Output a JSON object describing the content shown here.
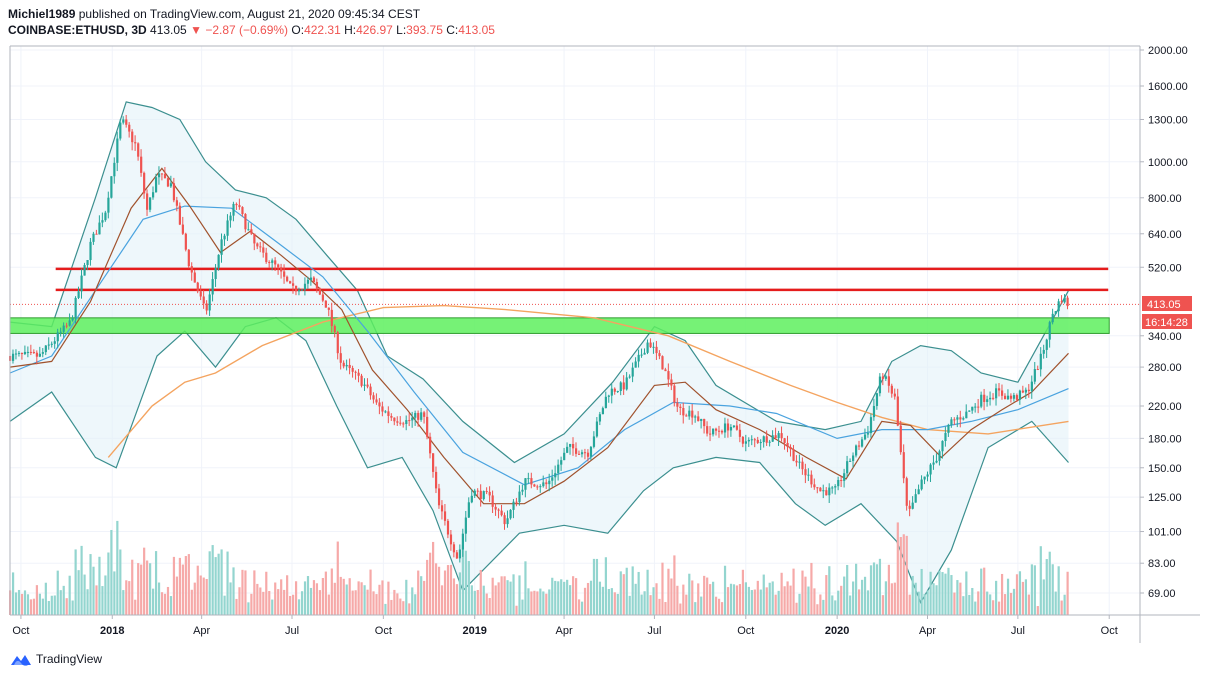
{
  "header": {
    "author": "Michiel1989",
    "published_text": "published on TradingView.com, August 21, 2020 09:45:34 CEST",
    "symbol": "COINBASE:ETHUSD, 3D",
    "last_price": "413.05",
    "change": "−2.87 (−0.69%)",
    "open_label": "O:",
    "open": "422.31",
    "high_label": "H:",
    "high": "426.97",
    "low_label": "L:",
    "low": "393.75",
    "close_label": "C:",
    "close": "413.05"
  },
  "price_badge": "413.05",
  "timer_badge": "16:14:28",
  "brand": {
    "name": "TradingView"
  },
  "colors": {
    "up": "#26a69a",
    "down": "#ef5350",
    "resistance": "#e51c1c",
    "support_zone": "#5ef05e",
    "sma_orange": "#f4a460",
    "sma_blue": "#4aa3df",
    "sma_brown": "#a0522d",
    "band": "#3b8f8f"
  },
  "chart_data": {
    "type": "candlestick",
    "y_scale": "log",
    "y_ticks": [
      69,
      83,
      101,
      125,
      150,
      180,
      220,
      280,
      340,
      520,
      640,
      800,
      1000,
      1300,
      1600,
      2000
    ],
    "y_tick_labels": [
      "69.00",
      "83.00",
      "101.00",
      "125.00",
      "150.00",
      "180.00",
      "220.00",
      "280.00",
      "340.00",
      "520.00",
      "640.00",
      "800.00",
      "1000.00",
      "1300.00",
      "1600.00",
      "2000.00"
    ],
    "x_ticks": [
      "Oct",
      "2018",
      "Apr",
      "Jul",
      "Oct",
      "2019",
      "Apr",
      "Jul",
      "Oct",
      "2020",
      "Apr",
      "Jul",
      "Oct"
    ],
    "x_tick_dates": [
      "2017-10",
      "2018-01",
      "2018-04",
      "2018-07",
      "2018-10",
      "2019-01",
      "2019-04",
      "2019-07",
      "2019-10",
      "2020-01",
      "2020-04",
      "2020-07",
      "2020-10"
    ],
    "bold_x_ticks": [
      "2018",
      "2019",
      "2020"
    ],
    "price_path": [
      [
        "2017-09-20",
        300
      ],
      [
        "2017-10-20",
        300
      ],
      [
        "2017-11-20",
        370
      ],
      [
        "2017-12-10",
        600
      ],
      [
        "2017-12-25",
        740
      ],
      [
        "2018-01-10",
        1300
      ],
      [
        "2018-01-25",
        1100
      ],
      [
        "2018-02-05",
        740
      ],
      [
        "2018-02-15",
        920
      ],
      [
        "2018-03-01",
        870
      ],
      [
        "2018-03-20",
        520
      ],
      [
        "2018-04-05",
        390
      ],
      [
        "2018-04-20",
        600
      ],
      [
        "2018-05-05",
        780
      ],
      [
        "2018-05-25",
        590
      ],
      [
        "2018-06-15",
        520
      ],
      [
        "2018-07-01",
        450
      ],
      [
        "2018-07-20",
        480
      ],
      [
        "2018-08-05",
        410
      ],
      [
        "2018-08-20",
        285
      ],
      [
        "2018-09-10",
        255
      ],
      [
        "2018-09-25",
        220
      ],
      [
        "2018-10-10",
        205
      ],
      [
        "2018-10-25",
        200
      ],
      [
        "2018-11-10",
        210
      ],
      [
        "2018-11-25",
        120
      ],
      [
        "2018-12-15",
        85
      ],
      [
        "2018-12-28",
        130
      ],
      [
        "2019-01-15",
        125
      ],
      [
        "2019-02-01",
        107
      ],
      [
        "2019-02-20",
        138
      ],
      [
        "2019-03-15",
        135
      ],
      [
        "2019-04-05",
        170
      ],
      [
        "2019-04-25",
        165
      ],
      [
        "2019-05-15",
        240
      ],
      [
        "2019-06-01",
        250
      ],
      [
        "2019-06-25",
        330
      ],
      [
        "2019-07-10",
        280
      ],
      [
        "2019-07-25",
        215
      ],
      [
        "2019-08-10",
        210
      ],
      [
        "2019-08-25",
        185
      ],
      [
        "2019-09-15",
        195
      ],
      [
        "2019-10-01",
        175
      ],
      [
        "2019-10-20",
        180
      ],
      [
        "2019-11-05",
        185
      ],
      [
        "2019-11-25",
        150
      ],
      [
        "2019-12-15",
        130
      ],
      [
        "2019-12-30",
        130
      ],
      [
        "2020-01-15",
        160
      ],
      [
        "2020-02-01",
        190
      ],
      [
        "2020-02-15",
        270
      ],
      [
        "2020-02-28",
        230
      ],
      [
        "2020-03-12",
        110
      ],
      [
        "2020-03-25",
        135
      ],
      [
        "2020-04-10",
        160
      ],
      [
        "2020-04-25",
        200
      ],
      [
        "2020-05-10",
        210
      ],
      [
        "2020-05-25",
        230
      ],
      [
        "2020-06-10",
        240
      ],
      [
        "2020-06-25",
        230
      ],
      [
        "2020-07-10",
        240
      ],
      [
        "2020-07-25",
        300
      ],
      [
        "2020-08-05",
        390
      ],
      [
        "2020-08-14",
        430
      ],
      [
        "2020-08-21",
        413
      ]
    ],
    "resistance_lines": [
      {
        "price": 515,
        "from": "2017-11-05",
        "to": "2020-09-30"
      },
      {
        "price": 452,
        "from": "2017-11-05",
        "to": "2020-09-30"
      }
    ],
    "support_zone": {
      "low": 345,
      "high": 380,
      "from": "2017-09-20",
      "to": "2020-10-01"
    },
    "sma_orange_path": [
      [
        "2017-12-28",
        160
      ],
      [
        "2018-02-10",
        220
      ],
      [
        "2018-03-15",
        255
      ],
      [
        "2018-04-15",
        270
      ],
      [
        "2018-06-01",
        320
      ],
      [
        "2018-08-01",
        370
      ],
      [
        "2018-10-01",
        405
      ],
      [
        "2018-12-01",
        410
      ],
      [
        "2019-02-01",
        400
      ],
      [
        "2019-05-01",
        380
      ],
      [
        "2019-07-15",
        340
      ],
      [
        "2019-09-15",
        290
      ],
      [
        "2019-11-15",
        250
      ],
      [
        "2020-01-01",
        225
      ],
      [
        "2020-02-15",
        205
      ],
      [
        "2020-04-01",
        190
      ],
      [
        "2020-06-01",
        185
      ],
      [
        "2020-08-21",
        200
      ]
    ],
    "sma_blue_path": [
      [
        "2017-09-20",
        270
      ],
      [
        "2017-11-01",
        300
      ],
      [
        "2017-12-15",
        450
      ],
      [
        "2018-02-01",
        700
      ],
      [
        "2018-03-15",
        760
      ],
      [
        "2018-05-01",
        750
      ],
      [
        "2018-06-15",
        610
      ],
      [
        "2018-08-01",
        490
      ],
      [
        "2018-09-15",
        350
      ],
      [
        "2018-11-01",
        240
      ],
      [
        "2018-12-20",
        165
      ],
      [
        "2019-02-20",
        135
      ],
      [
        "2019-04-15",
        150
      ],
      [
        "2019-06-01",
        190
      ],
      [
        "2019-07-20",
        225
      ],
      [
        "2019-09-15",
        220
      ],
      [
        "2019-11-01",
        210
      ],
      [
        "2020-01-01",
        180
      ],
      [
        "2020-02-15",
        190
      ],
      [
        "2020-04-01",
        190
      ],
      [
        "2020-05-15",
        200
      ],
      [
        "2020-07-01",
        215
      ],
      [
        "2020-08-21",
        245
      ]
    ],
    "sma_brown_path": [
      [
        "2017-09-20",
        280
      ],
      [
        "2017-11-01",
        290
      ],
      [
        "2017-12-10",
        420
      ],
      [
        "2018-01-20",
        750
      ],
      [
        "2018-02-20",
        960
      ],
      [
        "2018-03-20",
        760
      ],
      [
        "2018-04-20",
        570
      ],
      [
        "2018-05-20",
        650
      ],
      [
        "2018-06-20",
        560
      ],
      [
        "2018-07-20",
        480
      ],
      [
        "2018-08-20",
        400
      ],
      [
        "2018-09-20",
        275
      ],
      [
        "2018-10-25",
        215
      ],
      [
        "2018-12-01",
        160
      ],
      [
        "2019-01-10",
        120
      ],
      [
        "2019-02-20",
        120
      ],
      [
        "2019-04-01",
        138
      ],
      [
        "2019-05-15",
        170
      ],
      [
        "2019-07-01",
        250
      ],
      [
        "2019-08-01",
        255
      ],
      [
        "2019-09-01",
        215
      ],
      [
        "2019-10-15",
        190
      ],
      [
        "2019-12-01",
        160
      ],
      [
        "2020-01-10",
        140
      ],
      [
        "2020-02-15",
        200
      ],
      [
        "2020-03-15",
        195
      ],
      [
        "2020-04-15",
        160
      ],
      [
        "2020-05-15",
        190
      ],
      [
        "2020-06-15",
        215
      ],
      [
        "2020-07-15",
        240
      ],
      [
        "2020-08-21",
        305
      ]
    ],
    "band_upper_path": [
      [
        "2017-09-20",
        370
      ],
      [
        "2017-11-01",
        360
      ],
      [
        "2017-12-15",
        800
      ],
      [
        "2018-01-15",
        1450
      ],
      [
        "2018-02-10",
        1400
      ],
      [
        "2018-03-10",
        1300
      ],
      [
        "2018-04-05",
        1000
      ],
      [
        "2018-05-05",
        840
      ],
      [
        "2018-06-05",
        800
      ],
      [
        "2018-07-05",
        700
      ],
      [
        "2018-08-05",
        560
      ],
      [
        "2018-09-05",
        450
      ],
      [
        "2018-10-05",
        300
      ],
      [
        "2018-11-10",
        260
      ],
      [
        "2018-12-20",
        200
      ],
      [
        "2019-02-10",
        155
      ],
      [
        "2019-04-01",
        185
      ],
      [
        "2019-05-20",
        255
      ],
      [
        "2019-07-01",
        360
      ],
      [
        "2019-08-01",
        330
      ],
      [
        "2019-09-01",
        250
      ],
      [
        "2019-11-01",
        200
      ],
      [
        "2019-12-20",
        190
      ],
      [
        "2020-01-25",
        200
      ],
      [
        "2020-02-25",
        290
      ],
      [
        "2020-03-25",
        320
      ],
      [
        "2020-04-25",
        310
      ],
      [
        "2020-05-25",
        270
      ],
      [
        "2020-07-01",
        255
      ],
      [
        "2020-08-21",
        450
      ]
    ],
    "band_lower_path": [
      [
        "2017-09-20",
        200
      ],
      [
        "2017-11-01",
        240
      ],
      [
        "2017-12-15",
        160
      ],
      [
        "2018-01-05",
        150
      ],
      [
        "2018-02-15",
        300
      ],
      [
        "2018-03-15",
        350
      ],
      [
        "2018-04-15",
        280
      ],
      [
        "2018-05-15",
        360
      ],
      [
        "2018-06-15",
        380
      ],
      [
        "2018-07-15",
        330
      ],
      [
        "2018-08-15",
        220
      ],
      [
        "2018-09-15",
        150
      ],
      [
        "2018-10-20",
        160
      ],
      [
        "2018-11-20",
        115
      ],
      [
        "2018-12-20",
        70
      ],
      [
        "2019-02-15",
        100
      ],
      [
        "2019-04-01",
        105
      ],
      [
        "2019-05-15",
        100
      ],
      [
        "2019-06-20",
        130
      ],
      [
        "2019-07-20",
        150
      ],
      [
        "2019-09-01",
        160
      ],
      [
        "2019-10-15",
        155
      ],
      [
        "2019-11-20",
        120
      ],
      [
        "2019-12-20",
        105
      ],
      [
        "2020-01-25",
        120
      ],
      [
        "2020-03-01",
        95
      ],
      [
        "2020-03-25",
        65
      ],
      [
        "2020-04-25",
        90
      ],
      [
        "2020-06-01",
        170
      ],
      [
        "2020-07-15",
        200
      ],
      [
        "2020-08-21",
        155
      ]
    ]
  }
}
